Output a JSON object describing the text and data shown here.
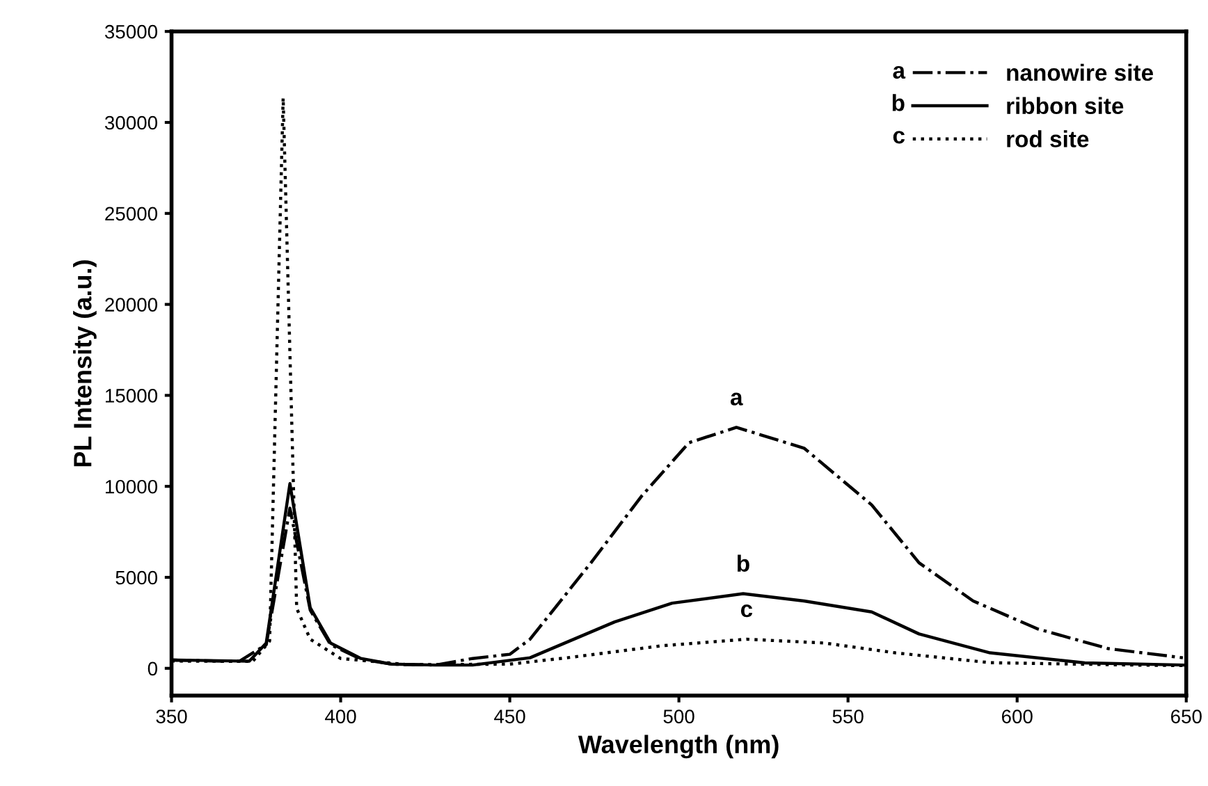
{
  "chart_data": {
    "type": "line",
    "xlabel": "Wavelength (nm)",
    "ylabel": "PL Intensity (a.u.)",
    "xlim": [
      350,
      650
    ],
    "xticks": [
      350,
      400,
      450,
      500,
      550,
      600,
      650
    ],
    "ylim": [
      -1500,
      35000
    ],
    "yticks": [
      0,
      5000,
      10000,
      15000,
      20000,
      25000,
      30000,
      35000
    ],
    "grid": false,
    "legend": "top right",
    "marker": "none",
    "series": [
      {
        "name": "nanowire site",
        "color": "#000000",
        "line_style": "dashdot",
        "x": [
          350,
          370,
          378,
          385,
          391,
          397,
          406,
          415,
          428,
          439,
          450,
          456,
          474,
          489,
          503,
          517,
          537,
          557,
          571,
          587,
          606,
          627,
          649
        ],
        "values": [
          450,
          380,
          1300,
          8800,
          3200,
          1300,
          500,
          230,
          180,
          540,
          770,
          1600,
          5800,
          9470,
          12400,
          13240,
          12100,
          8980,
          5800,
          3700,
          2170,
          1080,
          580
        ]
      },
      {
        "name": "ribbon site",
        "color": "#000000",
        "line_style": "solid",
        "x": [
          350,
          373,
          378,
          385,
          391,
          397,
          406,
          415,
          428,
          439,
          456,
          481,
          498,
          519,
          537,
          557,
          571,
          592,
          620,
          649
        ],
        "values": [
          460,
          390,
          1390,
          10150,
          3330,
          1390,
          540,
          230,
          180,
          180,
          580,
          2550,
          3580,
          4100,
          3700,
          3100,
          1890,
          850,
          300,
          180
        ]
      },
      {
        "name": "rod site",
        "color": "#000000",
        "line_style": "dotted",
        "x": [
          350,
          374,
          379,
          383,
          387,
          391,
          400,
          420,
          450,
          467,
          495,
          520,
          543,
          564,
          592,
          634,
          650
        ],
        "values": [
          400,
          380,
          1500,
          31350,
          3300,
          1600,
          540,
          200,
          230,
          580,
          1240,
          1600,
          1390,
          850,
          310,
          180,
          150
        ]
      }
    ],
    "annotations": [
      {
        "text": "a",
        "x": 517,
        "y": 13240
      },
      {
        "text": "b",
        "x": 519,
        "y": 4100
      },
      {
        "text": "c",
        "x": 520,
        "y": 1600
      }
    ]
  }
}
